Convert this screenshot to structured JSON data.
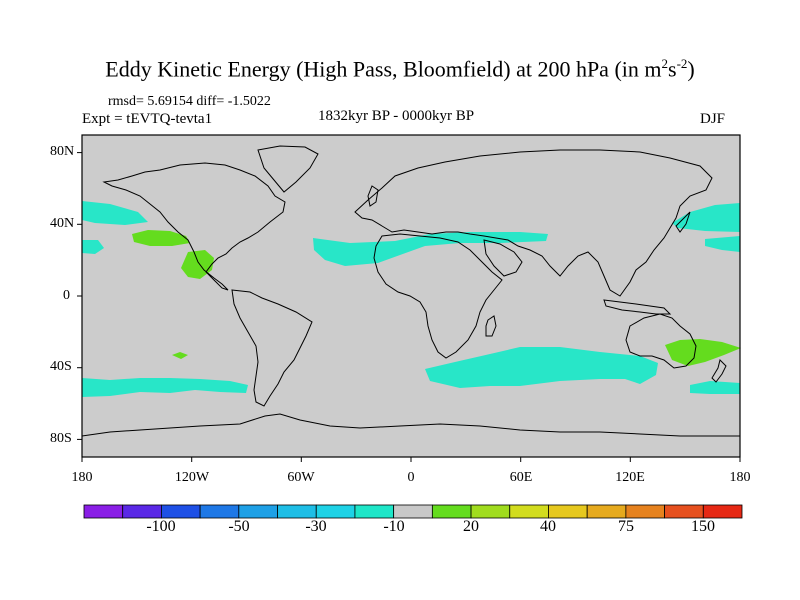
{
  "title": {
    "text": "Eddy Kinetic Energy (High Pass, Bloomfield) at 200 hPa (in m",
    "sup1": "2",
    "mid": "s",
    "sup2": "-2",
    "end": ")"
  },
  "stats": "rmsd= 5.69154 diff= -1.5022",
  "experiment": "Expt = tEVTQ-tevta1",
  "period": "1832kyr BP - 0000kyr BP",
  "season": "DJF",
  "lat_labels": [
    "80N",
    "40N",
    "0",
    "40S",
    "80S"
  ],
  "lon_labels": [
    "180",
    "120W",
    "60W",
    "0",
    "60E",
    "120E",
    "180"
  ],
  "colorbar": {
    "colors": [
      "#8a1ee6",
      "#5a28e6",
      "#1e50e6",
      "#1e78e6",
      "#1ea0e6",
      "#1ebee6",
      "#1ed2e6",
      "#1ee6c8",
      "#c8c8c8",
      "#64dc1e",
      "#a0dc1e",
      "#d2dc1e",
      "#e6c81e",
      "#e6aa1e",
      "#e6821e",
      "#e6501e",
      "#e62814"
    ],
    "labels": [
      "-100",
      "-50",
      "-30",
      "-10",
      "20",
      "40",
      "75",
      "150"
    ]
  },
  "map_colors": {
    "background": "#cccccc",
    "negative": "#28e6c8",
    "positive": "#64dc1e"
  }
}
